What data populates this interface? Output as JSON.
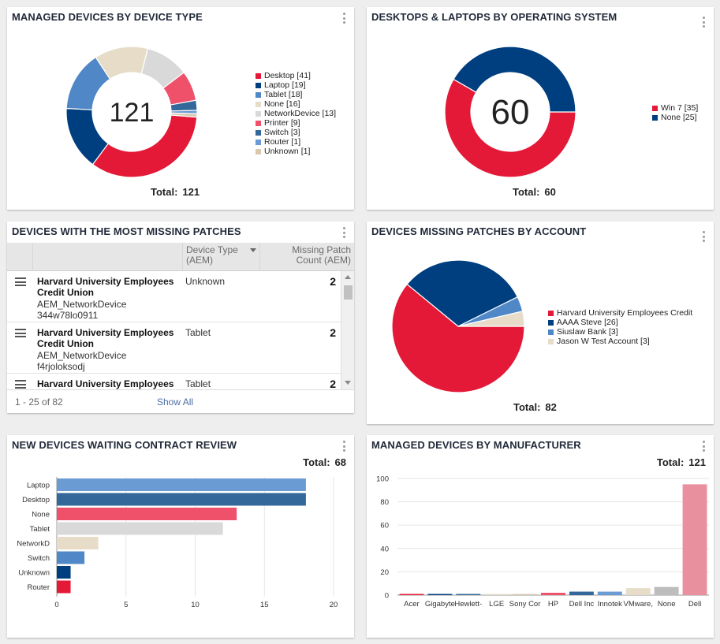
{
  "colors": {
    "red": "#e31937",
    "navy": "#003f7f",
    "blue": "#4f87c7",
    "beige": "#e6dcc8",
    "lightgray": "#d9d9d9",
    "pink": "#ef506a",
    "steel": "#34679a",
    "midblue": "#6a9bd3",
    "tan": "#d9c8ad"
  },
  "widgets": {
    "device_type": {
      "title": "MANAGED DEVICES BY DEVICE TYPE",
      "center": "121",
      "total_label": "Total:",
      "total_value": "121",
      "legend": [
        {
          "label": "Desktop [41]",
          "color": "#e31937"
        },
        {
          "label": "Laptop [19]",
          "color": "#003f7f"
        },
        {
          "label": "Tablet [18]",
          "color": "#4f87c7"
        },
        {
          "label": "None [16]",
          "color": "#e6dcc8"
        },
        {
          "label": "NetworkDevice [13]",
          "color": "#d9d9d9"
        },
        {
          "label": "Printer [9]",
          "color": "#ef506a"
        },
        {
          "label": "Switch [3]",
          "color": "#34679a"
        },
        {
          "label": "Router [1]",
          "color": "#6a9bd3"
        },
        {
          "label": "Unknown [1]",
          "color": "#d9c8ad"
        }
      ]
    },
    "os": {
      "title": "DESKTOPS & LAPTOPS BY OPERATING SYSTEM",
      "center": "60",
      "total_label": "Total:",
      "total_value": "60",
      "legend": [
        {
          "label": "Win 7 [35]",
          "color": "#e31937"
        },
        {
          "label": "None [25]",
          "color": "#003f7f"
        }
      ]
    },
    "missing_patches": {
      "title": "DEVICES WITH THE MOST MISSING PATCHES",
      "col_device_type": "Device Type (AEM)",
      "col_count": "Missing Patch Count (AEM)",
      "rows": [
        {
          "name": "Harvard University Employees Credit Union",
          "sub1": "AEM_NetworkDevice",
          "sub2": "344w78lo0911",
          "type": "Unknown",
          "count": "2"
        },
        {
          "name": "Harvard University Employees Credit Union",
          "sub1": "AEM_NetworkDevice",
          "sub2": "f4rjoloksodj",
          "type": "Tablet",
          "count": "2"
        },
        {
          "name": "Harvard University Employees Credit Union",
          "sub1": "",
          "sub2": "",
          "type": "Tablet",
          "count": "2"
        }
      ],
      "range": "1 - 25 of 82",
      "show_all": "Show All"
    },
    "by_account": {
      "title": "DEVICES MISSING PATCHES BY ACCOUNT",
      "total_label": "Total:",
      "total_value": "82",
      "legend": [
        {
          "label": "Harvard University Employees Credit",
          "color": "#e31937"
        },
        {
          "label": "AAAA Steve [26]",
          "color": "#003f7f"
        },
        {
          "label": "Siuslaw Bank [3]",
          "color": "#4f87c7"
        },
        {
          "label": "Jason W Test Account [3]",
          "color": "#e6dcc8"
        }
      ]
    },
    "contract_review": {
      "title": "NEW DEVICES WAITING CONTRACT REVIEW",
      "total_label": "Total:",
      "total_value": "68"
    },
    "manufacturer": {
      "title": "MANAGED DEVICES BY MANUFACTURER",
      "total_label": "Total:",
      "total_value": "121"
    }
  },
  "chart_data": [
    {
      "type": "pie",
      "title": "MANAGED DEVICES BY DEVICE TYPE",
      "categories": [
        "Desktop",
        "Laptop",
        "Tablet",
        "None",
        "NetworkDevice",
        "Printer",
        "Switch",
        "Router",
        "Unknown"
      ],
      "values": [
        41,
        19,
        18,
        16,
        13,
        9,
        3,
        1,
        1
      ],
      "colors": [
        "#e31937",
        "#003f7f",
        "#4f87c7",
        "#e6dcc8",
        "#d9d9d9",
        "#ef506a",
        "#34679a",
        "#6a9bd3",
        "#d9c8ad"
      ],
      "donut": true,
      "legend": "right"
    },
    {
      "type": "pie",
      "title": "DESKTOPS & LAPTOPS BY OPERATING SYSTEM",
      "categories": [
        "Win 7",
        "None"
      ],
      "values": [
        35,
        25
      ],
      "colors": [
        "#e31937",
        "#003f7f"
      ],
      "donut": true,
      "legend": "right"
    },
    {
      "type": "pie",
      "title": "DEVICES MISSING PATCHES BY ACCOUNT",
      "categories": [
        "Harvard University Employees Credit",
        "AAAA Steve",
        "Siuslaw Bank",
        "Jason W Test Account"
      ],
      "values": [
        50,
        26,
        3,
        3
      ],
      "colors": [
        "#e31937",
        "#003f7f",
        "#4f87c7",
        "#e6dcc8"
      ],
      "donut": false,
      "legend": "right"
    },
    {
      "type": "bar",
      "orientation": "horizontal",
      "title": "NEW DEVICES WAITING CONTRACT REVIEW",
      "categories": [
        "Laptop",
        "Desktop",
        "None",
        "Tablet",
        "NetworkD",
        "Switch",
        "Unknown",
        "Router"
      ],
      "values": [
        18,
        18,
        13,
        12,
        3,
        2,
        1,
        1
      ],
      "colors": [
        "#6a9bd3",
        "#34679a",
        "#ef506a",
        "#d9d9d9",
        "#e6dcc8",
        "#4f87c7",
        "#003f7f",
        "#e31937"
      ],
      "xlim": [
        0,
        20
      ],
      "xticks": [
        0,
        5,
        10,
        15,
        20
      ],
      "grid": true
    },
    {
      "type": "bar",
      "title": "MANAGED DEVICES BY MANUFACTURER",
      "categories": [
        "Acer",
        "Gigabyte",
        "Hewlett-",
        "LGE",
        "Sony Cor",
        "HP",
        "Dell Inc",
        "Innotek",
        "VMware,",
        "None",
        "Dell"
      ],
      "values": [
        1,
        1,
        1,
        1,
        1,
        2,
        3,
        3,
        6,
        7,
        95
      ],
      "colors": [
        "#e31937",
        "#003f7f",
        "#34679a",
        "#e6dcc8",
        "#d9c8ad",
        "#ef506a",
        "#34679a",
        "#6a9bd3",
        "#e6dcc8",
        "#bdbdbd",
        "#e8909e"
      ],
      "ylim": [
        0,
        100
      ],
      "yticks": [
        0,
        20,
        40,
        60,
        80,
        100
      ],
      "grid": true
    }
  ]
}
